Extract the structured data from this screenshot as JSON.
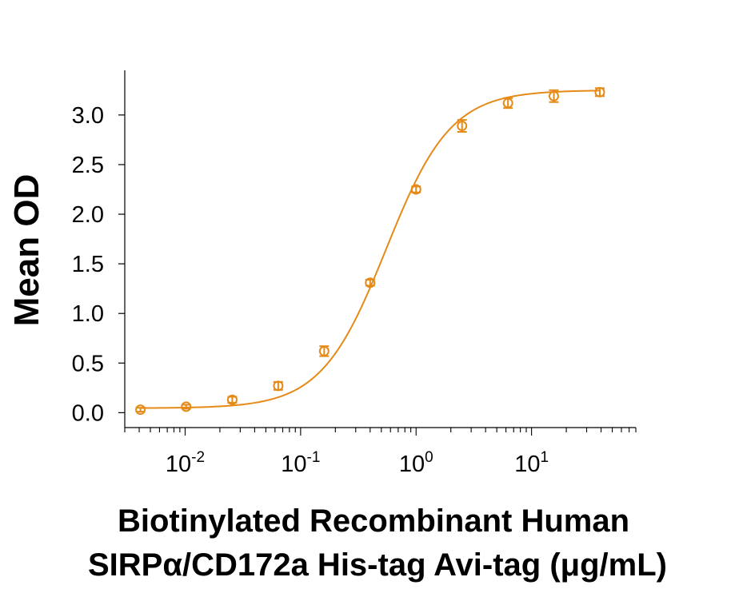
{
  "chart_data": {
    "type": "scatter",
    "title": "",
    "ylabel": "Mean OD",
    "xlabel_lines": [
      "Biotinylated Recombinant Human",
      "SIRPα/CD172a His-tag Avi-tag (μg/mL)"
    ],
    "x_scale": "log",
    "xlim": [
      0.003,
      80
    ],
    "ylim": [
      -0.15,
      3.45
    ],
    "yticks": [
      {
        "value": 0.0,
        "label": "0.0"
      },
      {
        "value": 0.5,
        "label": "0.5"
      },
      {
        "value": 1.0,
        "label": "1.0"
      },
      {
        "value": 1.5,
        "label": "1.5"
      },
      {
        "value": 2.0,
        "label": "2.0"
      },
      {
        "value": 2.5,
        "label": "2.5"
      },
      {
        "value": 3.0,
        "label": "3.0"
      }
    ],
    "xticks": [
      {
        "value": 0.01,
        "base": "10",
        "exponent": "-2"
      },
      {
        "value": 0.1,
        "base": "10",
        "exponent": "-1"
      },
      {
        "value": 1,
        "base": "10",
        "exponent": "0"
      },
      {
        "value": 10,
        "base": "10",
        "exponent": "1"
      }
    ],
    "grid": false,
    "legend": "none",
    "color": "#E68A17",
    "series": [
      {
        "x": [
          0.0041,
          0.0102,
          0.0256,
          0.064,
          0.16,
          0.4,
          1.0,
          2.5,
          6.25,
          15.6,
          39
        ],
        "y": [
          0.03,
          0.06,
          0.13,
          0.27,
          0.62,
          1.31,
          2.25,
          2.89,
          3.12,
          3.19,
          3.23
        ],
        "err": [
          0.02,
          0.02,
          0.03,
          0.04,
          0.05,
          0.03,
          0.03,
          0.06,
          0.05,
          0.06,
          0.04
        ]
      }
    ],
    "fit_curve": {
      "model": "4PL",
      "bottom": 0.045,
      "top": 3.25,
      "ec50": 0.55,
      "hill": 1.55
    }
  }
}
